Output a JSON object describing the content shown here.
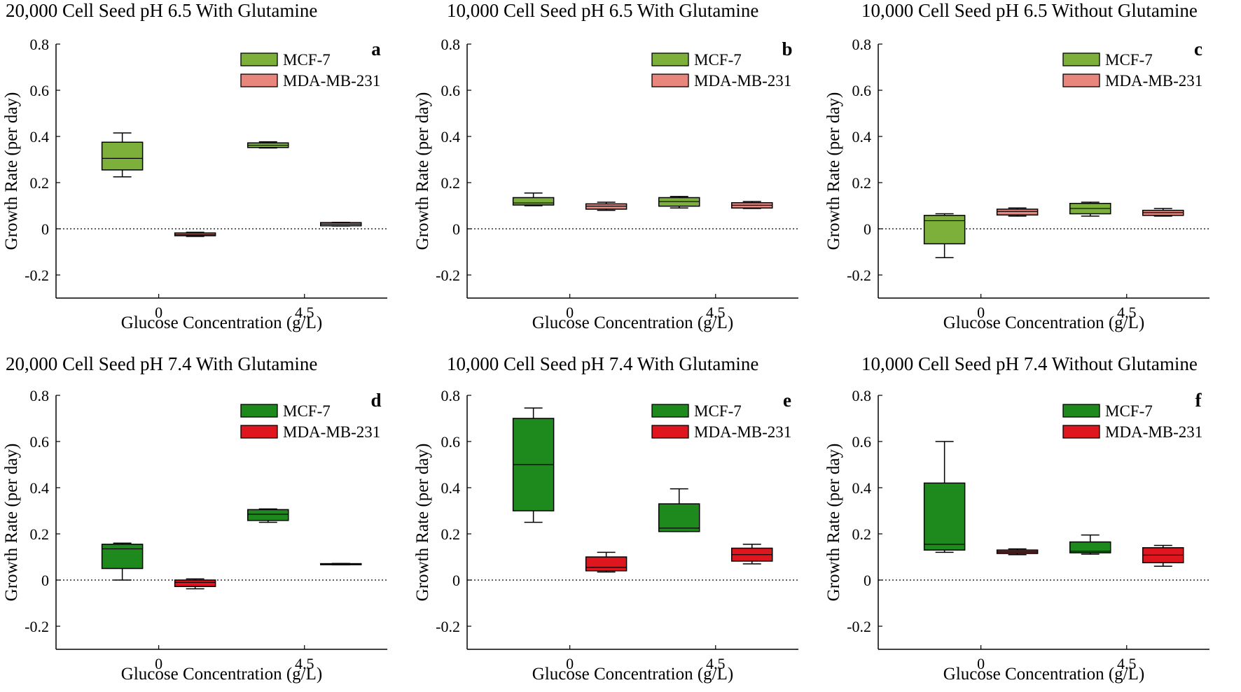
{
  "chart_data": [
    {
      "type": "box",
      "panel_label": "a",
      "title": "20,000 Cell Seed pH 6.5 With Glutamine",
      "xlabel": "Glucose Concentration (g/L)",
      "ylabel": "Growth Rate (per day)",
      "ylim": [
        -0.3,
        0.8
      ],
      "yticks": [
        -0.2,
        0,
        0.2,
        0.4,
        0.6,
        0.8
      ],
      "ytick_labels": [
        "-0.2",
        "0",
        "0.2",
        "0.4",
        "0.6",
        "0.8"
      ],
      "categories": [
        "0",
        "4.5"
      ],
      "reference_line": 0,
      "legend": {
        "location": "top-right",
        "entries": [
          "MCF-7",
          "MDA-MB-231"
        ]
      },
      "series": [
        {
          "name": "MCF-7",
          "color": "#7db03a",
          "boxes": [
            {
              "category": "0",
              "min": 0.225,
              "q1": 0.255,
              "median": 0.305,
              "q3": 0.375,
              "max": 0.415
            },
            {
              "category": "4.5",
              "min": 0.35,
              "q1": 0.352,
              "median": 0.362,
              "q3": 0.372,
              "max": 0.377
            }
          ]
        },
        {
          "name": "MDA-MB-231",
          "color": "#e8867d",
          "boxes": [
            {
              "category": "0",
              "min": -0.033,
              "q1": -0.03,
              "median": -0.025,
              "q3": -0.018,
              "max": -0.015
            },
            {
              "category": "4.5",
              "min": 0.012,
              "q1": 0.013,
              "median": 0.02,
              "q3": 0.027,
              "max": 0.028
            }
          ]
        }
      ]
    },
    {
      "type": "box",
      "panel_label": "b",
      "title": "10,000 Cell Seed pH 6.5 With Glutamine",
      "xlabel": "Glucose Concentration (g/L)",
      "ylabel": "Growth Rate (per day)",
      "ylim": [
        -0.3,
        0.8
      ],
      "yticks": [
        -0.2,
        0,
        0.2,
        0.4,
        0.6,
        0.8
      ],
      "ytick_labels": [
        "-0.2",
        "0",
        "0.2",
        "0.4",
        "0.6",
        "0.8"
      ],
      "categories": [
        "0",
        "4.5"
      ],
      "reference_line": 0,
      "legend": {
        "location": "top-right",
        "entries": [
          "MCF-7",
          "MDA-MB-231"
        ]
      },
      "series": [
        {
          "name": "MCF-7",
          "color": "#7db03a",
          "boxes": [
            {
              "category": "0",
              "min": 0.1,
              "q1": 0.103,
              "median": 0.112,
              "q3": 0.135,
              "max": 0.155
            },
            {
              "category": "4.5",
              "min": 0.09,
              "q1": 0.098,
              "median": 0.118,
              "q3": 0.135,
              "max": 0.14
            }
          ]
        },
        {
          "name": "MDA-MB-231",
          "color": "#e8867d",
          "boxes": [
            {
              "category": "0",
              "min": 0.08,
              "q1": 0.085,
              "median": 0.098,
              "q3": 0.108,
              "max": 0.115
            },
            {
              "category": "4.5",
              "min": 0.088,
              "q1": 0.09,
              "median": 0.102,
              "q3": 0.113,
              "max": 0.118
            }
          ]
        }
      ]
    },
    {
      "type": "box",
      "panel_label": "c",
      "title": "10,000 Cell Seed pH 6.5 Without Glutamine",
      "xlabel": "Glucose Concentration (g/L)",
      "ylabel": "Growth Rate (per day)",
      "ylim": [
        -0.3,
        0.8
      ],
      "yticks": [
        -0.2,
        0,
        0.2,
        0.4,
        0.6,
        0.8
      ],
      "ytick_labels": [
        "-0.2",
        "0",
        "0.2",
        "0.4",
        "0.6",
        "0.8"
      ],
      "categories": [
        "0",
        "4.5"
      ],
      "reference_line": 0,
      "legend": {
        "location": "top-right",
        "entries": [
          "MCF-7",
          "MDA-MB-231"
        ]
      },
      "series": [
        {
          "name": "MCF-7",
          "color": "#7db03a",
          "boxes": [
            {
              "category": "0",
              "min": -0.125,
              "q1": -0.065,
              "median": 0.035,
              "q3": 0.058,
              "max": 0.065
            },
            {
              "category": "4.5",
              "min": 0.055,
              "q1": 0.065,
              "median": 0.088,
              "q3": 0.11,
              "max": 0.115
            }
          ]
        },
        {
          "name": "MDA-MB-231",
          "color": "#e8867d",
          "boxes": [
            {
              "category": "0",
              "min": 0.055,
              "q1": 0.06,
              "median": 0.075,
              "q3": 0.085,
              "max": 0.09
            },
            {
              "category": "4.5",
              "min": 0.055,
              "q1": 0.058,
              "median": 0.07,
              "q3": 0.08,
              "max": 0.088
            }
          ]
        }
      ]
    },
    {
      "type": "box",
      "panel_label": "d",
      "title": "20,000 Cell Seed pH 7.4 With Glutamine",
      "xlabel": "Glucose Concentration (g/L)",
      "ylabel": "Growth Rate (per day)",
      "ylim": [
        -0.3,
        0.8
      ],
      "yticks": [
        -0.2,
        0,
        0.2,
        0.4,
        0.6,
        0.8
      ],
      "ytick_labels": [
        "-0.2",
        "0",
        "0.2",
        "0.4",
        "0.6",
        "0.8"
      ],
      "categories": [
        "0",
        "4.5"
      ],
      "reference_line": 0,
      "legend": {
        "location": "top-right",
        "entries": [
          "MCF-7",
          "MDA-MB-231"
        ]
      },
      "series": [
        {
          "name": "MCF-7",
          "color": "#1e8a1e",
          "boxes": [
            {
              "category": "0",
              "min": 0.0,
              "q1": 0.05,
              "median": 0.135,
              "q3": 0.155,
              "max": 0.16
            },
            {
              "category": "4.5",
              "min": 0.25,
              "q1": 0.258,
              "median": 0.285,
              "q3": 0.305,
              "max": 0.308
            }
          ]
        },
        {
          "name": "MDA-MB-231",
          "color": "#e0161e",
          "boxes": [
            {
              "category": "0",
              "min": -0.038,
              "q1": -0.028,
              "median": -0.01,
              "q3": 0.0,
              "max": 0.005
            },
            {
              "category": "4.5",
              "min": 0.066,
              "q1": 0.067,
              "median": 0.069,
              "q3": 0.071,
              "max": 0.072
            }
          ]
        }
      ]
    },
    {
      "type": "box",
      "panel_label": "e",
      "title": "10,000 Cell Seed pH 7.4 With Glutamine",
      "xlabel": "Glucose Concentration (g/L)",
      "ylabel": "Growth Rate (per day)",
      "ylim": [
        -0.3,
        0.8
      ],
      "yticks": [
        -0.2,
        0,
        0.2,
        0.4,
        0.6,
        0.8
      ],
      "ytick_labels": [
        "-0.2",
        "0",
        "0.2",
        "0.4",
        "0.6",
        "0.8"
      ],
      "categories": [
        "0",
        "4.5"
      ],
      "reference_line": 0,
      "legend": {
        "location": "top-right",
        "entries": [
          "MCF-7",
          "MDA-MB-231"
        ]
      },
      "series": [
        {
          "name": "MCF-7",
          "color": "#1e8a1e",
          "boxes": [
            {
              "category": "0",
              "min": 0.25,
              "q1": 0.3,
              "median": 0.5,
              "q3": 0.7,
              "max": 0.745
            },
            {
              "category": "4.5",
              "min": 0.21,
              "q1": 0.21,
              "median": 0.225,
              "q3": 0.33,
              "max": 0.395
            }
          ]
        },
        {
          "name": "MDA-MB-231",
          "color": "#e0161e",
          "boxes": [
            {
              "category": "0",
              "min": 0.035,
              "q1": 0.04,
              "median": 0.055,
              "q3": 0.1,
              "max": 0.12
            },
            {
              "category": "4.5",
              "min": 0.07,
              "q1": 0.082,
              "median": 0.11,
              "q3": 0.138,
              "max": 0.155
            }
          ]
        }
      ]
    },
    {
      "type": "box",
      "panel_label": "f",
      "title": "10,000 Cell Seed pH 7.4 Without Glutamine",
      "xlabel": "Glucose Concentration (g/L)",
      "ylabel": "Growth Rate (per day)",
      "ylim": [
        -0.3,
        0.8
      ],
      "yticks": [
        -0.2,
        0,
        0.2,
        0.4,
        0.6,
        0.8
      ],
      "ytick_labels": [
        "-0.2",
        "0",
        "0.2",
        "0.4",
        "0.6",
        "0.8"
      ],
      "categories": [
        "0",
        "4.5"
      ],
      "reference_line": 0,
      "legend": {
        "location": "top-right",
        "entries": [
          "MCF-7",
          "MDA-MB-231"
        ]
      },
      "series": [
        {
          "name": "MCF-7",
          "color": "#1e8a1e",
          "boxes": [
            {
              "category": "0",
              "min": 0.12,
              "q1": 0.13,
              "median": 0.155,
              "q3": 0.42,
              "max": 0.6
            },
            {
              "category": "4.5",
              "min": 0.112,
              "q1": 0.118,
              "median": 0.125,
              "q3": 0.165,
              "max": 0.195
            }
          ]
        },
        {
          "name": "MDA-MB-231",
          "color": "#e0161e",
          "boxes": [
            {
              "category": "0",
              "min": 0.11,
              "q1": 0.115,
              "median": 0.122,
              "q3": 0.13,
              "max": 0.135
            },
            {
              "category": "4.5",
              "min": 0.06,
              "q1": 0.075,
              "median": 0.108,
              "q3": 0.14,
              "max": 0.15
            }
          ]
        }
      ]
    }
  ]
}
